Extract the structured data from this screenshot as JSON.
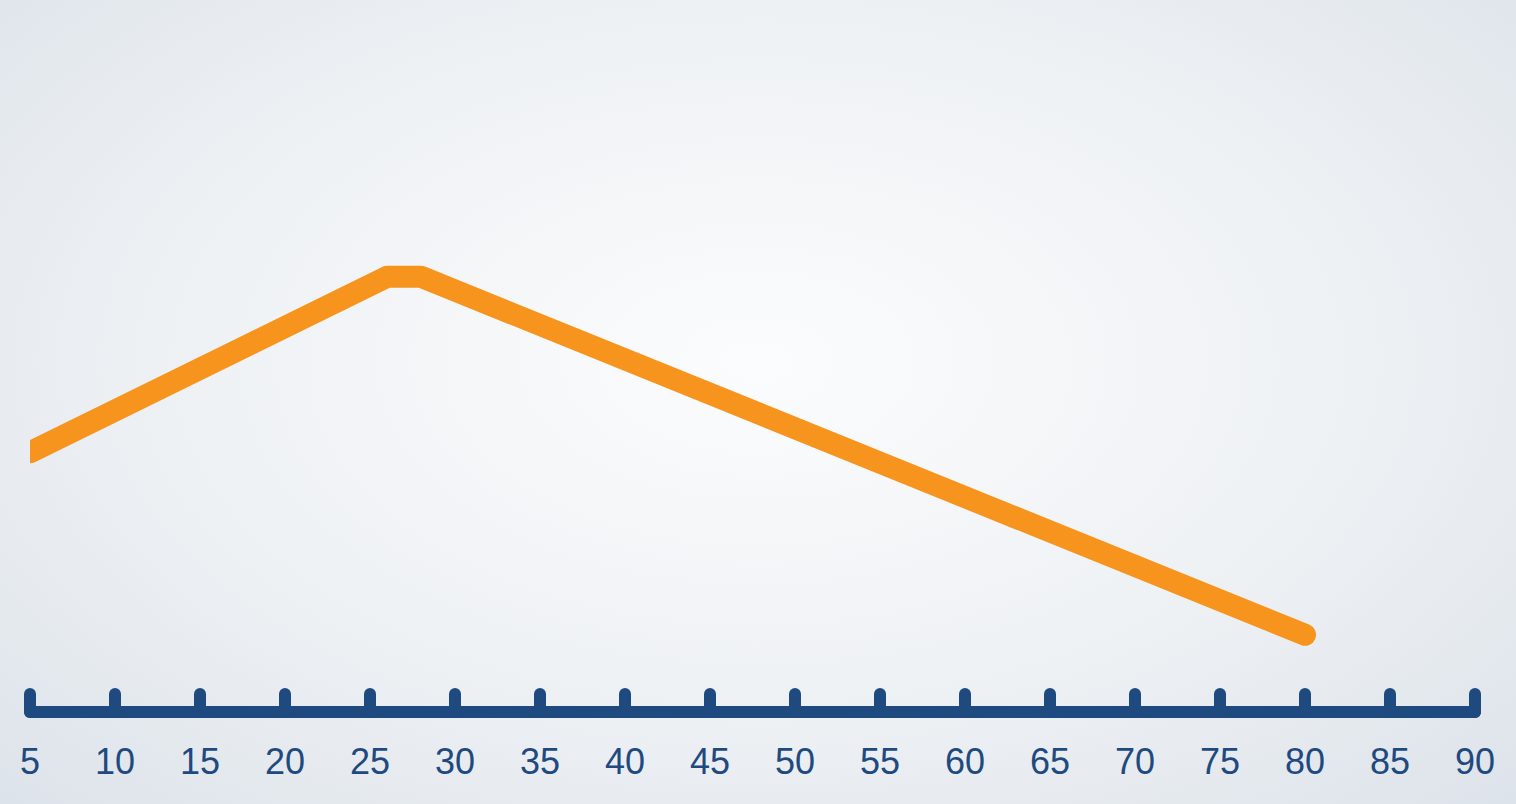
{
  "chart_data": {
    "type": "line",
    "x": [
      5,
      26,
      28,
      80
    ],
    "values": [
      37,
      62,
      62,
      11
    ],
    "color": "#f7941d",
    "xlim": [
      5,
      90
    ],
    "xticks": [
      5,
      10,
      15,
      20,
      25,
      30,
      35,
      40,
      45,
      50,
      55,
      60,
      65,
      70,
      75,
      80,
      85,
      90
    ],
    "ylim": [
      0,
      100
    ],
    "tick_labels": "x",
    "grid": false
  }
}
